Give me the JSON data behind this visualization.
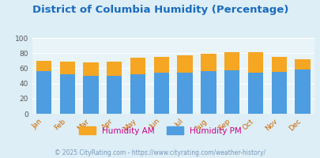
{
  "title": "District of Columbia Humidity (Percentage)",
  "months": [
    "Jan",
    "Feb",
    "Mar",
    "Apr",
    "May",
    "Jun",
    "Jul",
    "Aug",
    "Sep",
    "Oct",
    "Nov",
    "Dec"
  ],
  "humidity_pm": [
    56,
    52,
    50,
    50,
    52,
    54,
    54,
    56,
    57,
    54,
    55,
    58
  ],
  "humidity_am": [
    14,
    17,
    18,
    19,
    22,
    21,
    23,
    23,
    24,
    27,
    20,
    14
  ],
  "color_pm": "#4d9de0",
  "color_am": "#f5a623",
  "bg_color": "#ddeef6",
  "plot_bg": "#e8f4f8",
  "ylim": [
    0,
    100
  ],
  "yticks": [
    0,
    20,
    40,
    60,
    80,
    100
  ],
  "title_color": "#1a6bbf",
  "footer_text": "© 2025 CityRating.com - https://www.cityrating.com/weather-history/",
  "footer_color": "#7899bb",
  "legend_am_label": "Humidity AM",
  "legend_pm_label": "Humidity PM",
  "tick_color": "#cc6600",
  "grid_color": "#ffffff"
}
